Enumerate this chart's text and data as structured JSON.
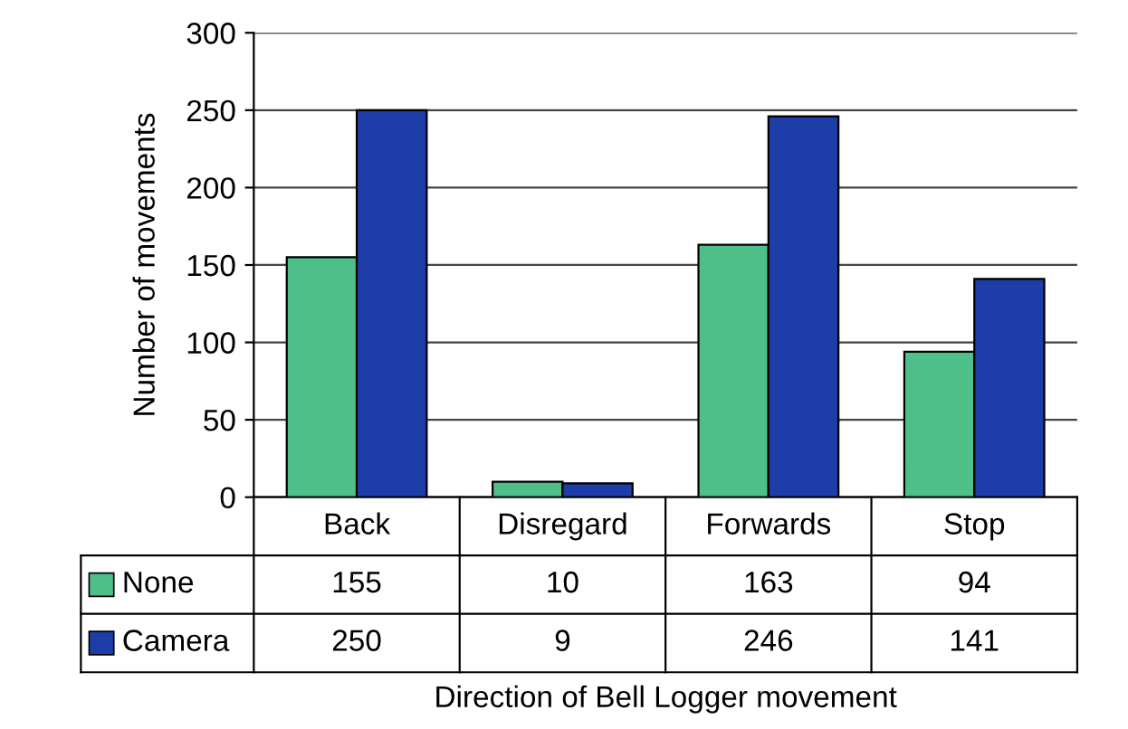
{
  "chart_data": {
    "type": "bar",
    "xlabel": "Direction of Bell Logger movement",
    "ylabel": "Number of movements",
    "categories": [
      "Back",
      "Disregard",
      "Forwards",
      "Stop"
    ],
    "series": [
      {
        "name": "None",
        "color": "#4fbf8a",
        "values": [
          155,
          10,
          163,
          94
        ]
      },
      {
        "name": "Camera",
        "color": "#1f3da8",
        "values": [
          250,
          9,
          246,
          141
        ]
      }
    ],
    "ylim": [
      0,
      300
    ],
    "yticks": [
      0,
      50,
      100,
      150,
      200,
      250,
      300
    ],
    "grid": "y",
    "data_labels": true,
    "legend": "bottom"
  }
}
